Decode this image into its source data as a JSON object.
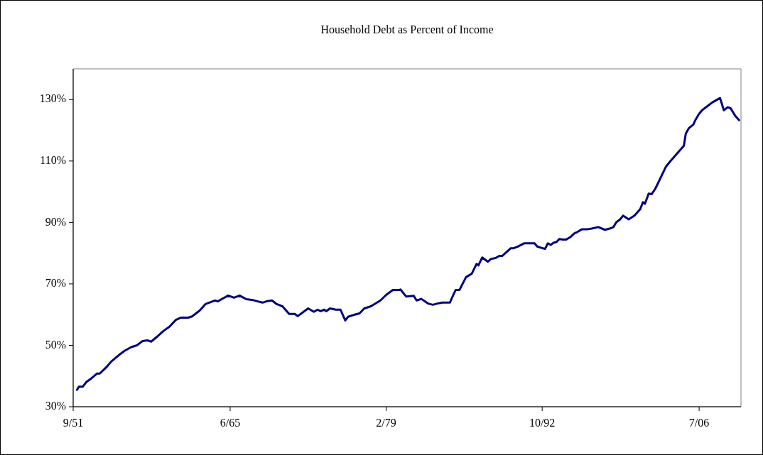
{
  "chart_data": {
    "type": "line",
    "title": "Household Debt as Percent of Income",
    "x": [
      "1952-01",
      "1952-03",
      "1952-07",
      "1952-11",
      "1953-04",
      "1953-10",
      "1954-01",
      "1954-08",
      "1955-01",
      "1955-09",
      "1956-03",
      "1956-10",
      "1957-04",
      "1957-10",
      "1958-03",
      "1958-07",
      "1959-02",
      "1959-08",
      "1960-02",
      "1960-09",
      "1961-02",
      "1961-10",
      "1962-02",
      "1962-10",
      "1963-04",
      "1964-02",
      "1964-05",
      "1964-09",
      "1965-04",
      "1965-10",
      "1966-04",
      "1966-11",
      "1967-05",
      "1967-11",
      "1968-04",
      "1968-08",
      "1969-02",
      "1969-07",
      "1970-01",
      "1970-08",
      "1971-02",
      "1971-05",
      "1971-09",
      "1972-04",
      "1972-10",
      "1973-02",
      "1973-05",
      "1973-09",
      "1973-11",
      "1974-03",
      "1974-09",
      "1975-02",
      "1975-07",
      "1975-10",
      "1976-05",
      "1976-10",
      "1977-03",
      "1977-10",
      "1978-08",
      "1979-02",
      "1979-09",
      "1980-04",
      "1980-05",
      "1980-11",
      "1981-07",
      "1981-10",
      "1982-03",
      "1982-10",
      "1983-03",
      "1983-08",
      "1984-01",
      "1984-09",
      "1984-11",
      "1985-03",
      "1985-07",
      "1986-02",
      "1986-08",
      "1987-01",
      "1987-03",
      "1987-07",
      "1988-01",
      "1988-04",
      "1988-09",
      "1989-01",
      "1989-04",
      "1990-01",
      "1990-04",
      "1990-08",
      "1991-03",
      "1992-02",
      "1992-05",
      "1993-01",
      "1993-04",
      "1993-07",
      "1993-10",
      "1994-01",
      "1994-04",
      "1994-08",
      "1994-11",
      "1995-04",
      "1995-08",
      "1995-11",
      "1996-04",
      "1996-10",
      "1997-02",
      "1997-09",
      "1998-04",
      "1998-09",
      "1999-01",
      "1999-04",
      "1999-08",
      "1999-11",
      "2000-05",
      "2000-11",
      "2001-03",
      "2001-05",
      "2001-08",
      "2001-10",
      "2002-02",
      "2002-05",
      "2002-09",
      "2003-02",
      "2003-08",
      "2004-01",
      "2004-08",
      "2005-03",
      "2005-05",
      "2005-08",
      "2006-01",
      "2006-03",
      "2006-07",
      "2006-10",
      "2007-03",
      "2007-09",
      "2008-05",
      "2008-09",
      "2009-01",
      "2009-04",
      "2009-09",
      "2010-01"
    ],
    "series": [
      {
        "color": "#000080",
        "values": [
          35.5,
          36.5,
          36.5,
          38.1,
          39.2,
          40.8,
          40.8,
          42.9,
          44.7,
          46.8,
          48.2,
          49.4,
          50.0,
          51.4,
          51.6,
          51.2,
          53.0,
          54.7,
          56.0,
          58.3,
          59.0,
          59.0,
          59.4,
          61.3,
          63.4,
          64.6,
          64.3,
          65.0,
          66.2,
          65.5,
          66.2,
          65.0,
          64.8,
          64.3,
          63.9,
          64.3,
          64.6,
          63.4,
          62.7,
          60.2,
          60.2,
          59.5,
          60.4,
          62.0,
          60.9,
          61.6,
          61.1,
          61.6,
          61.1,
          62.0,
          61.6,
          61.6,
          58.1,
          59.3,
          60.0,
          60.4,
          62.0,
          62.7,
          64.6,
          66.4,
          68.0,
          68.0,
          68.2,
          65.9,
          66.1,
          64.6,
          65.1,
          63.6,
          63.2,
          63.6,
          63.9,
          63.9,
          65.3,
          68.0,
          68.0,
          72.2,
          73.3,
          76.5,
          76.0,
          78.6,
          77.2,
          78.1,
          78.4,
          79.1,
          79.1,
          81.6,
          81.6,
          82.1,
          83.2,
          83.2,
          82.1,
          81.4,
          83.2,
          82.7,
          83.4,
          83.6,
          84.6,
          84.4,
          84.4,
          85.3,
          86.5,
          86.9,
          87.8,
          87.8,
          88.0,
          88.5,
          87.6,
          88.0,
          88.5,
          90.1,
          91.0,
          92.2,
          91.0,
          92.2,
          93.6,
          94.3,
          96.6,
          96.1,
          99.4,
          99.2,
          101.0,
          104.2,
          108.1,
          110.0,
          112.5,
          115.0,
          118.9,
          120.6,
          121.9,
          123.3,
          125.4,
          126.5,
          127.7,
          129.1,
          130.5,
          126.5,
          127.5,
          127.2,
          124.7,
          123.3
        ]
      }
    ],
    "xlim": [
      "1951-09",
      "2010-03"
    ],
    "xticks": [
      {
        "value": "1951-09",
        "label": "9/51"
      },
      {
        "value": "1965-06",
        "label": "6/65"
      },
      {
        "value": "1979-02",
        "label": "2/79"
      },
      {
        "value": "1992-10",
        "label": "10/92"
      },
      {
        "value": "2006-07",
        "label": "7/06"
      }
    ],
    "ylim": [
      30,
      140
    ],
    "yticks": [
      {
        "value": 30,
        "label": "30%"
      },
      {
        "value": 50,
        "label": "50%"
      },
      {
        "value": 70,
        "label": "70%"
      },
      {
        "value": 90,
        "label": "90%"
      },
      {
        "value": 110,
        "label": "110%"
      },
      {
        "value": 130,
        "label": "130%"
      }
    ],
    "grid": false,
    "legend": false,
    "marker": "none",
    "line_style": "solid"
  }
}
